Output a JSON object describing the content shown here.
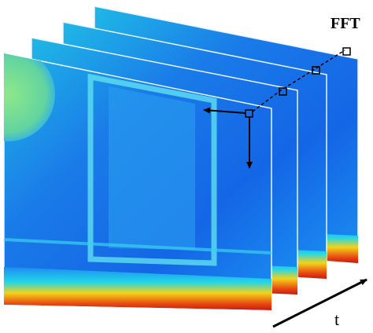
{
  "labels": {
    "fft": "FFT",
    "time_axis": "t"
  }
}
